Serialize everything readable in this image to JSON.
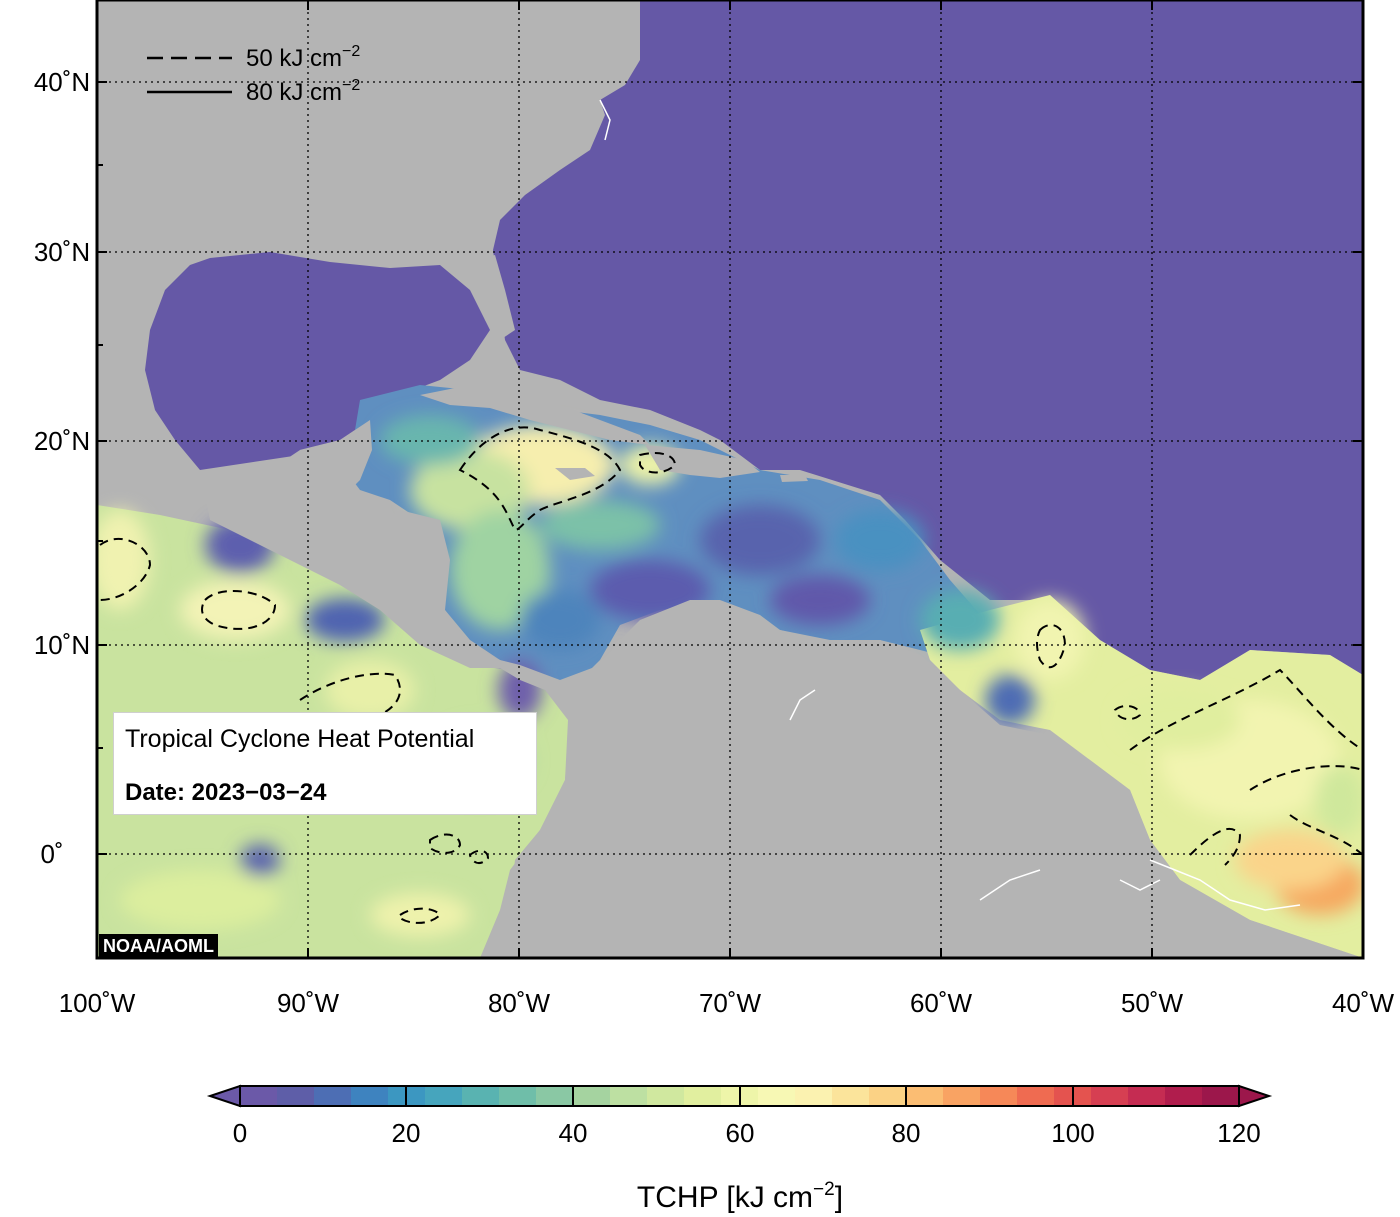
{
  "map": {
    "latitude_labels": [
      "40˚N",
      "30˚N",
      "20˚N",
      "10˚N",
      "0˚"
    ],
    "longitude_labels": [
      "100˚W",
      "90˚W",
      "80˚W",
      "70˚W",
      "60˚W",
      "50˚W",
      "40˚W"
    ]
  },
  "legend": {
    "dashed": {
      "value": "50 kJ cm",
      "exp": "−2"
    },
    "solid": {
      "value": "80 kJ cm",
      "exp": "−2"
    }
  },
  "info": {
    "title": "Tropical Cyclone Heat Potential",
    "date": "Date: 2023−03−24"
  },
  "credit": "NOAA/AOML",
  "colorbar": {
    "tick_labels": [
      "0",
      "20",
      "40",
      "60",
      "80",
      "100",
      "120"
    ],
    "title": "TCHP [kJ cm",
    "title_exp": "−2",
    "title_close": "]",
    "colors": [
      "#6b59a8",
      "#5e5ea8",
      "#4d6eb4",
      "#3e83bf",
      "#3c97c1",
      "#46a5bd",
      "#59b3b1",
      "#6fbea9",
      "#8ac8a4",
      "#a5d3a0",
      "#bde0a2",
      "#d0e89f",
      "#e1ef9f",
      "#eef5a9",
      "#f7f8b4",
      "#fbf2b0",
      "#fbe49b",
      "#fbd285",
      "#fbbd73",
      "#f9a363",
      "#f68858",
      "#ef6b51",
      "#e4534f",
      "#d63f52",
      "#c52c52",
      "#b01d4d",
      "#9c174b"
    ],
    "arrow_low": "#6b59a8",
    "arrow_high": "#9c174b"
  }
}
